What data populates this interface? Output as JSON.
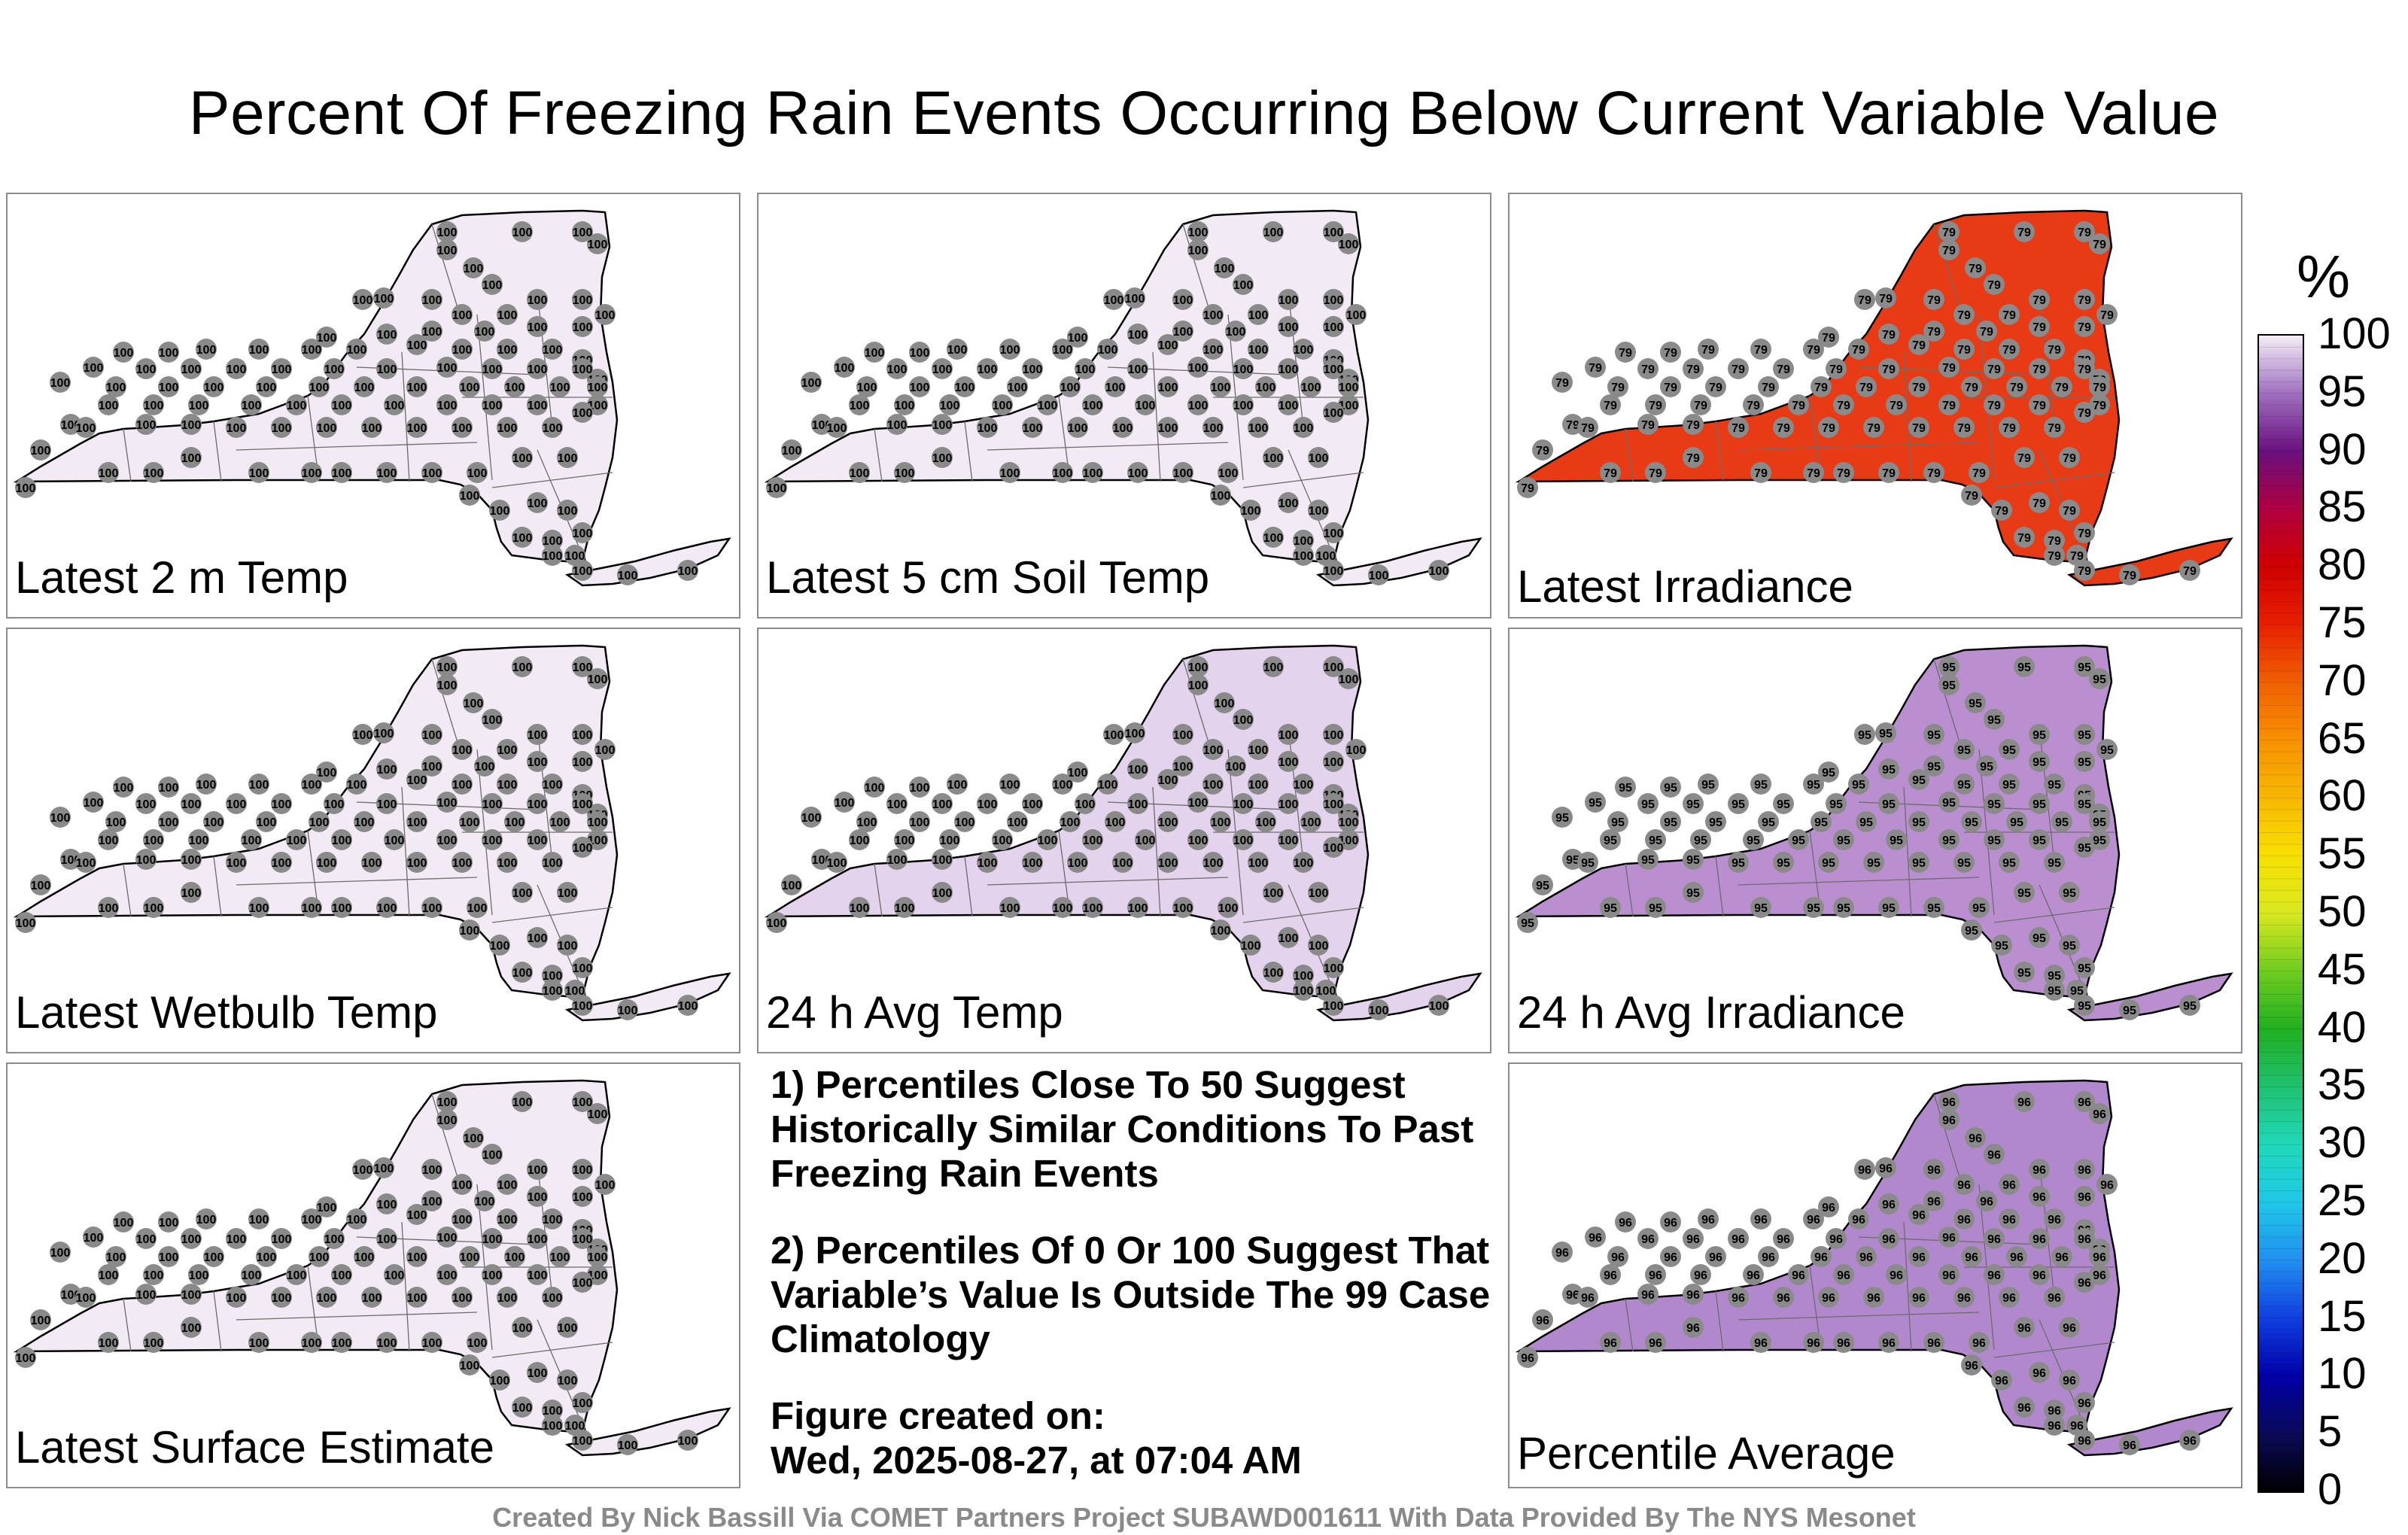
{
  "title": "Percent Of Freezing Rain Events Occurring Below Current Variable Value",
  "panels": [
    {
      "id": "temp2m",
      "label": "Latest 2 m Temp",
      "fill": "#f2eaf4",
      "station_text": "100"
    },
    {
      "id": "soil5cm",
      "label": "Latest 5 cm Soil Temp",
      "fill": "#f2eaf4",
      "station_text": "100"
    },
    {
      "id": "irradiance",
      "label": "Latest Irradiance",
      "fill": "#e83a14",
      "station_text": "79"
    },
    {
      "id": "wetbulb",
      "label": "Latest Wetbulb Temp",
      "fill": "#f2eaf4",
      "station_text": "100"
    },
    {
      "id": "avgtemp24",
      "label": "24 h Avg Temp",
      "fill": "#e4d3ec",
      "station_text": "100"
    },
    {
      "id": "avgirr24",
      "label": "24 h Avg Irradiance",
      "fill": "#b98fd0",
      "station_text": "95"
    },
    {
      "id": "surface",
      "label": "Latest Surface Estimate",
      "fill": "#f2eaf4",
      "station_text": "100"
    },
    {
      "id": "average",
      "label": "Percentile Average",
      "fill": "#b288cc",
      "station_text": "96"
    }
  ],
  "notes": [
    "1) Percentiles Close To 50 Suggest Historically Similar Conditions To Past Freezing Rain Events",
    "2) Percentiles Of 0 Or 100 Suggest That Variable’s Value Is Outside The 99 Case Climatology",
    "Figure created on:",
    "Wed, 2025-08-27, at 07:04 AM"
  ],
  "colorbar": {
    "unit": "%",
    "ticks": [
      "100",
      "95",
      "90",
      "85",
      "80",
      "75",
      "70",
      "65",
      "60",
      "55",
      "50",
      "45",
      "40",
      "35",
      "30",
      "25",
      "20",
      "15",
      "10",
      "5",
      "0"
    ],
    "min": 0,
    "max": 100
  },
  "footer": "Created By Nick Bassill Via COMET Partners Project SUBAWD001611 With Data Provided By The NYS Mesonet"
}
